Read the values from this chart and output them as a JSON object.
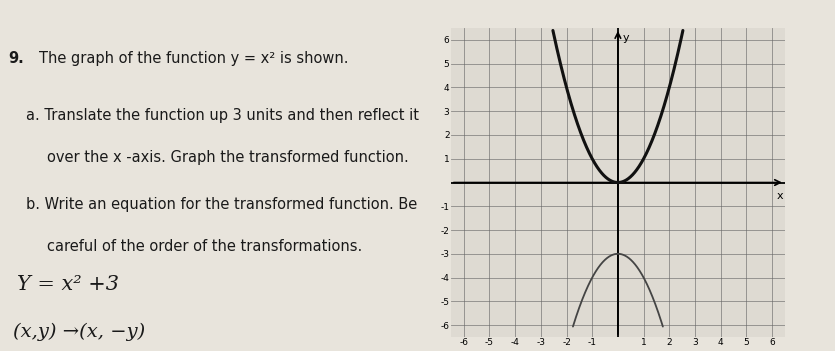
{
  "problem_number": "9.",
  "title_line": "The graph of the function y = x² is shown.",
  "part_a_line1": "a. Translate the function up 3 units and then reflect it",
  "part_a_line2": "   over the x -axis. Graph the transformed function.",
  "part_b_line1": "b. Write an equation for the transformed function. Be",
  "part_b_line2": "   careful of the order of the transformations.",
  "answer_eq": "Y = x² +3",
  "answer_map": "(x,y) →(x, −y)",
  "xlim": [
    -6.5,
    6.5
  ],
  "ylim": [
    -6.5,
    6.5
  ],
  "x_ticks": [
    -6,
    -5,
    -4,
    -3,
    -2,
    -1,
    1,
    2,
    3,
    4,
    5,
    6
  ],
  "y_ticks": [
    -6,
    -5,
    -4,
    -3,
    -2,
    -1,
    1,
    2,
    3,
    4,
    5,
    6
  ],
  "original_color": "#111111",
  "transformed_color": "#444444",
  "original_linewidth": 2.2,
  "transformed_linewidth": 1.3,
  "paper_color": "#e8e4dc",
  "photo_bg_top": "#8a7060",
  "photo_bg_right": "#6a5a4a",
  "graph_bg": "#dedad2",
  "grid_color": "#666666",
  "text_color": "#1a1a1a",
  "fig_width": 8.35,
  "fig_height": 3.51
}
